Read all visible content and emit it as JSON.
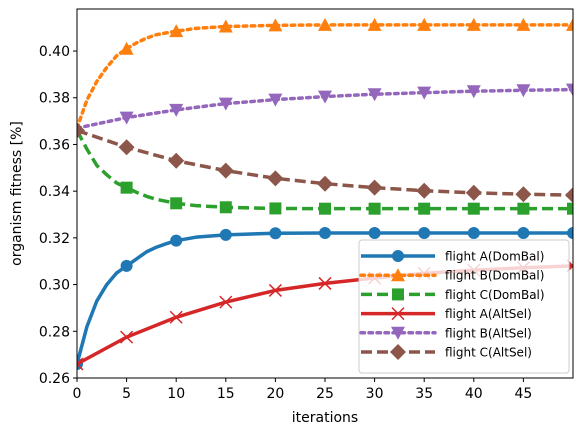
{
  "chart_data": {
    "type": "line",
    "xlabel": "iterations",
    "ylabel": "organism fitness [%]",
    "xlim": [
      0,
      50
    ],
    "ylim": [
      0.26,
      0.418
    ],
    "xticks": [
      0,
      5,
      10,
      15,
      20,
      25,
      30,
      35,
      40,
      45
    ],
    "yticks": [
      0.26,
      0.28,
      0.3,
      0.32,
      0.34,
      0.36,
      0.38,
      0.4
    ],
    "ytick_labels": [
      "0.26",
      "0.28",
      "0.30",
      "0.32",
      "0.34",
      "0.36",
      "0.38",
      "0.40"
    ],
    "grid": false,
    "legend_position": "lower-right",
    "series": [
      {
        "name": "flight A(DomBal)",
        "color": "#1f77b4",
        "line_style": "solid",
        "marker": "circle",
        "x": [
          0,
          1,
          2,
          3,
          4,
          5,
          6,
          7,
          8,
          9,
          10,
          12,
          15,
          20,
          25,
          30,
          35,
          40,
          45,
          50
        ],
        "y": [
          0.266,
          0.282,
          0.293,
          0.3,
          0.305,
          0.308,
          0.311,
          0.314,
          0.316,
          0.3175,
          0.3188,
          0.3203,
          0.3213,
          0.322,
          0.3221,
          0.3221,
          0.3221,
          0.3221,
          0.3221,
          0.3221
        ],
        "marker_x": [
          0,
          5,
          10,
          15,
          20,
          25,
          30,
          35,
          40,
          45,
          50
        ],
        "marker_y": [
          0.266,
          0.308,
          0.3188,
          0.3213,
          0.322,
          0.3221,
          0.3221,
          0.3221,
          0.3221,
          0.3221,
          0.3221
        ]
      },
      {
        "name": "flight B(DomBal)",
        "color": "#ff7f0e",
        "line_style": "dotted",
        "marker": "triangle-up",
        "x": [
          0,
          1,
          2,
          3,
          4,
          5,
          6,
          7,
          8,
          10,
          12,
          15,
          20,
          25,
          30,
          35,
          40,
          45,
          50
        ],
        "y": [
          0.367,
          0.379,
          0.387,
          0.393,
          0.398,
          0.401,
          0.4035,
          0.4055,
          0.407,
          0.4085,
          0.4097,
          0.4105,
          0.411,
          0.4112,
          0.4112,
          0.4112,
          0.4112,
          0.4112,
          0.4112
        ],
        "marker_x": [
          5,
          10,
          15,
          20,
          25,
          30,
          35,
          40,
          45,
          50
        ],
        "marker_y": [
          0.401,
          0.4085,
          0.4105,
          0.411,
          0.4112,
          0.4112,
          0.4112,
          0.4112,
          0.4112,
          0.4112
        ]
      },
      {
        "name": "flight C(DomBal)",
        "color": "#2ca02c",
        "line_style": "dashed",
        "marker": "square",
        "x": [
          0,
          1,
          2,
          3,
          4,
          5,
          6,
          7,
          8,
          10,
          12,
          15,
          20,
          25,
          30,
          35,
          40,
          45,
          50
        ],
        "y": [
          0.366,
          0.358,
          0.351,
          0.347,
          0.3435,
          0.3415,
          0.3395,
          0.3378,
          0.3365,
          0.3348,
          0.3338,
          0.3331,
          0.3326,
          0.3325,
          0.3325,
          0.3325,
          0.3325,
          0.3325,
          0.3325
        ],
        "marker_x": [
          5,
          10,
          15,
          20,
          25,
          30,
          35,
          40,
          45,
          50
        ],
        "marker_y": [
          0.3415,
          0.3348,
          0.3331,
          0.3326,
          0.3325,
          0.3325,
          0.3325,
          0.3325,
          0.3325,
          0.3325
        ]
      },
      {
        "name": "flight A(AltSel)",
        "color": "#d62728",
        "line_style": "solid",
        "marker": "x",
        "x": [
          0,
          5,
          10,
          15,
          20,
          25,
          30,
          35,
          40,
          45,
          50
        ],
        "y": [
          0.266,
          0.2775,
          0.286,
          0.2925,
          0.2975,
          0.3005,
          0.3028,
          0.3048,
          0.3062,
          0.3072,
          0.308
        ],
        "marker_x": [
          0,
          5,
          10,
          15,
          20,
          25,
          30,
          35,
          40,
          45,
          50
        ],
        "marker_y": [
          0.266,
          0.2775,
          0.286,
          0.2925,
          0.2975,
          0.3005,
          0.3028,
          0.3048,
          0.3062,
          0.3072,
          0.308
        ]
      },
      {
        "name": "flight B(AltSel)",
        "color": "#9467bd",
        "line_style": "dotted",
        "marker": "triangle-down",
        "x": [
          0,
          5,
          10,
          15,
          20,
          25,
          30,
          35,
          40,
          45,
          50
        ],
        "y": [
          0.367,
          0.3715,
          0.3748,
          0.3775,
          0.3792,
          0.3805,
          0.3815,
          0.3822,
          0.3828,
          0.3832,
          0.3835
        ],
        "marker_x": [
          5,
          10,
          15,
          20,
          25,
          30,
          35,
          40,
          45,
          50
        ],
        "marker_y": [
          0.3715,
          0.3748,
          0.3775,
          0.3792,
          0.3805,
          0.3815,
          0.3822,
          0.3828,
          0.3832,
          0.3835
        ]
      },
      {
        "name": "flight C(AltSel)",
        "color": "#8c564b",
        "line_style": "dashed",
        "marker": "diamond",
        "x": [
          0,
          5,
          10,
          15,
          20,
          25,
          30,
          35,
          40,
          45,
          50
        ],
        "y": [
          0.366,
          0.3588,
          0.353,
          0.3488,
          0.3455,
          0.3432,
          0.3415,
          0.3402,
          0.3393,
          0.3387,
          0.3383
        ],
        "marker_x": [
          0,
          5,
          10,
          15,
          20,
          25,
          30,
          35,
          40,
          45,
          50
        ],
        "marker_y": [
          0.366,
          0.3588,
          0.353,
          0.3488,
          0.3455,
          0.3432,
          0.3415,
          0.3402,
          0.3393,
          0.3387,
          0.3383
        ]
      }
    ]
  }
}
